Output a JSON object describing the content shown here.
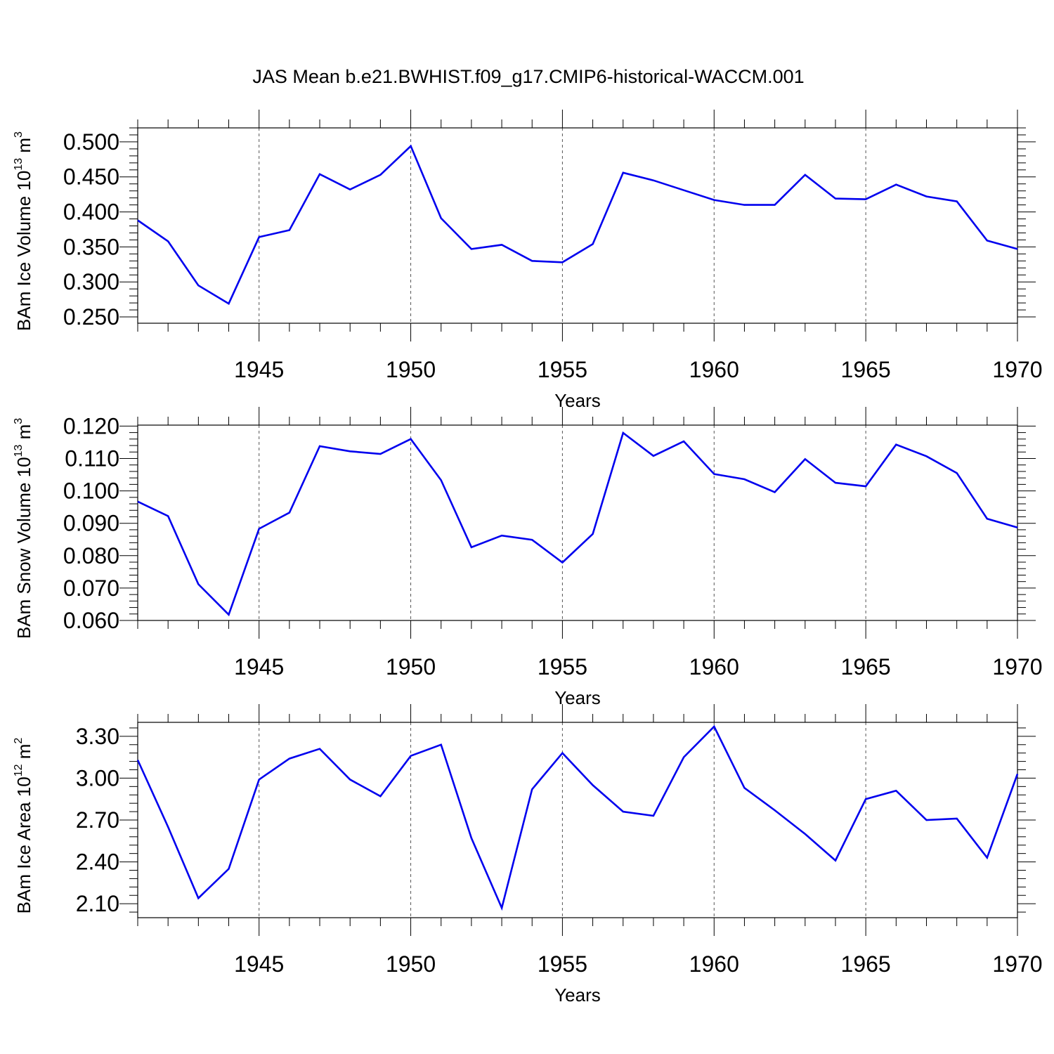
{
  "figure": {
    "title": "JAS Mean b.e21.BWHIST.f09_g17.CMIP6-historical-WACCM.001",
    "line_color": "#0000ee"
  },
  "chart_data": [
    {
      "type": "line",
      "name": "ice-volume",
      "ylabel_main": "BAm Ice Volume 10",
      "ylabel_exp": "13",
      "ylabel_unit": " m",
      "ylabel_unit_exp": "3",
      "xlabel": "Years",
      "xlim": [
        1941,
        1970
      ],
      "ylim": [
        0.241,
        0.52
      ],
      "yticks": [
        0.25,
        0.3,
        0.35,
        0.4,
        0.45,
        0.5
      ],
      "ytick_labels": [
        "0.250",
        "0.300",
        "0.350",
        "0.400",
        "0.450",
        "0.500"
      ],
      "xticks": [
        1945,
        1950,
        1955,
        1960,
        1965,
        1970
      ],
      "xtick_labels": [
        "1945",
        "1950",
        "1955",
        "1960",
        "1965",
        "1970"
      ],
      "x": [
        1941,
        1942,
        1943,
        1944,
        1945,
        1946,
        1947,
        1948,
        1949,
        1950,
        1951,
        1952,
        1953,
        1954,
        1955,
        1956,
        1957,
        1958,
        1959,
        1960,
        1961,
        1962,
        1963,
        1964,
        1965,
        1966,
        1967,
        1968,
        1969,
        1970
      ],
      "values": [
        0.388,
        0.358,
        0.295,
        0.269,
        0.364,
        0.374,
        0.454,
        0.432,
        0.453,
        0.494,
        0.391,
        0.347,
        0.353,
        0.33,
        0.328,
        0.354,
        0.456,
        0.445,
        0.431,
        0.417,
        0.41,
        0.41,
        0.453,
        0.419,
        0.418,
        0.439,
        0.422,
        0.415,
        0.359,
        0.347
      ]
    },
    {
      "type": "line",
      "name": "snow-volume",
      "ylabel_main": "BAm Snow Volume 10",
      "ylabel_exp": "13",
      "ylabel_unit": " m",
      "ylabel_unit_exp": "3",
      "xlabel": "Years",
      "xlim": [
        1941,
        1970
      ],
      "ylim": [
        0.06,
        0.1203
      ],
      "yticks": [
        0.06,
        0.07,
        0.08,
        0.09,
        0.1,
        0.11,
        0.12
      ],
      "ytick_labels": [
        "0.060",
        "0.070",
        "0.080",
        "0.090",
        "0.100",
        "0.110",
        "0.120"
      ],
      "xticks": [
        1945,
        1950,
        1955,
        1960,
        1965,
        1970
      ],
      "xtick_labels": [
        "1945",
        "1950",
        "1955",
        "1960",
        "1965",
        "1970"
      ],
      "x": [
        1941,
        1942,
        1943,
        1944,
        1945,
        1946,
        1947,
        1948,
        1949,
        1950,
        1951,
        1952,
        1953,
        1954,
        1955,
        1956,
        1957,
        1958,
        1959,
        1960,
        1961,
        1962,
        1963,
        1964,
        1965,
        1966,
        1967,
        1968,
        1969,
        1970
      ],
      "values": [
        0.0967,
        0.0922,
        0.0712,
        0.0618,
        0.0883,
        0.0933,
        0.1138,
        0.1122,
        0.1114,
        0.116,
        0.1033,
        0.0826,
        0.0862,
        0.0849,
        0.0779,
        0.0867,
        0.1179,
        0.1108,
        0.1153,
        0.1052,
        0.1036,
        0.0996,
        0.1098,
        0.1025,
        0.1014,
        0.1143,
        0.1107,
        0.1055,
        0.0914,
        0.0887
      ]
    },
    {
      "type": "line",
      "name": "ice-area",
      "ylabel_main": "BAm Ice Area 10",
      "ylabel_exp": "12",
      "ylabel_unit": " m",
      "ylabel_unit_exp": "2",
      "xlabel": "Years",
      "xlim": [
        1941,
        1970
      ],
      "ylim": [
        2.0,
        3.4
      ],
      "yticks": [
        2.1,
        2.4,
        2.7,
        3.0,
        3.3
      ],
      "ytick_labels": [
        "2.10",
        "2.40",
        "2.70",
        "3.00",
        "3.30"
      ],
      "xticks": [
        1945,
        1950,
        1955,
        1960,
        1965,
        1970
      ],
      "xtick_labels": [
        "1945",
        "1950",
        "1955",
        "1960",
        "1965",
        "1970"
      ],
      "x": [
        1941,
        1942,
        1943,
        1944,
        1945,
        1946,
        1947,
        1948,
        1949,
        1950,
        1951,
        1952,
        1953,
        1954,
        1955,
        1956,
        1957,
        1958,
        1959,
        1960,
        1961,
        1962,
        1963,
        1964,
        1965,
        1966,
        1967,
        1968,
        1969,
        1970
      ],
      "values": [
        3.13,
        2.65,
        2.14,
        2.35,
        2.99,
        3.14,
        3.21,
        2.99,
        2.87,
        3.16,
        3.24,
        2.57,
        2.07,
        2.92,
        3.18,
        2.95,
        2.76,
        2.73,
        3.15,
        3.37,
        2.93,
        2.77,
        2.6,
        2.41,
        2.85,
        2.91,
        2.7,
        2.71,
        2.43,
        3.03
      ]
    }
  ]
}
